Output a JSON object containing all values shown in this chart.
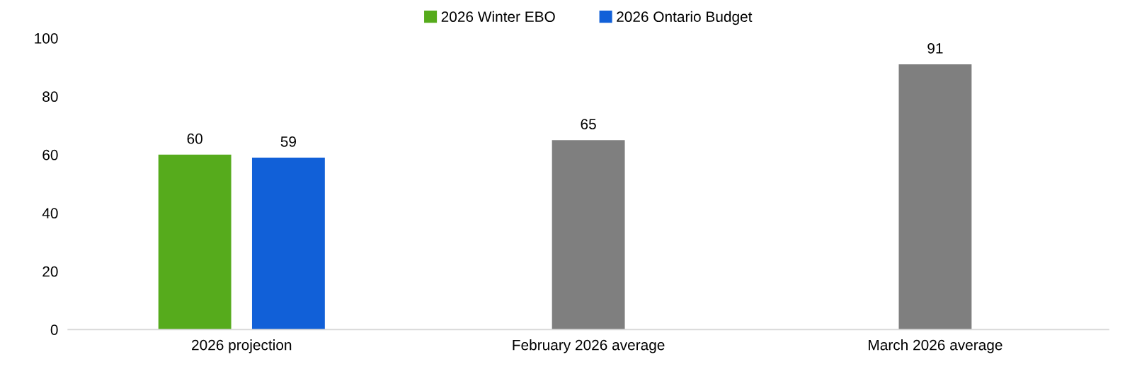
{
  "chart_data": {
    "type": "bar",
    "categories": [
      "2026 projection",
      "February 2026 average",
      "March 2026 average"
    ],
    "series": [
      {
        "name": "2026 Winter EBO",
        "color": "#56ab1c",
        "values": [
          60,
          null,
          null
        ]
      },
      {
        "name": "2026 Ontario Budget",
        "color": "#1160d8",
        "values": [
          59,
          null,
          null
        ]
      },
      {
        "color": "#7f7f7f",
        "values": [
          null,
          65,
          91
        ]
      }
    ],
    "ylim": [
      0,
      100
    ],
    "yticks": [
      0,
      20,
      40,
      60,
      80,
      100
    ],
    "data_labels": true,
    "grid": false,
    "legend": "top"
  }
}
